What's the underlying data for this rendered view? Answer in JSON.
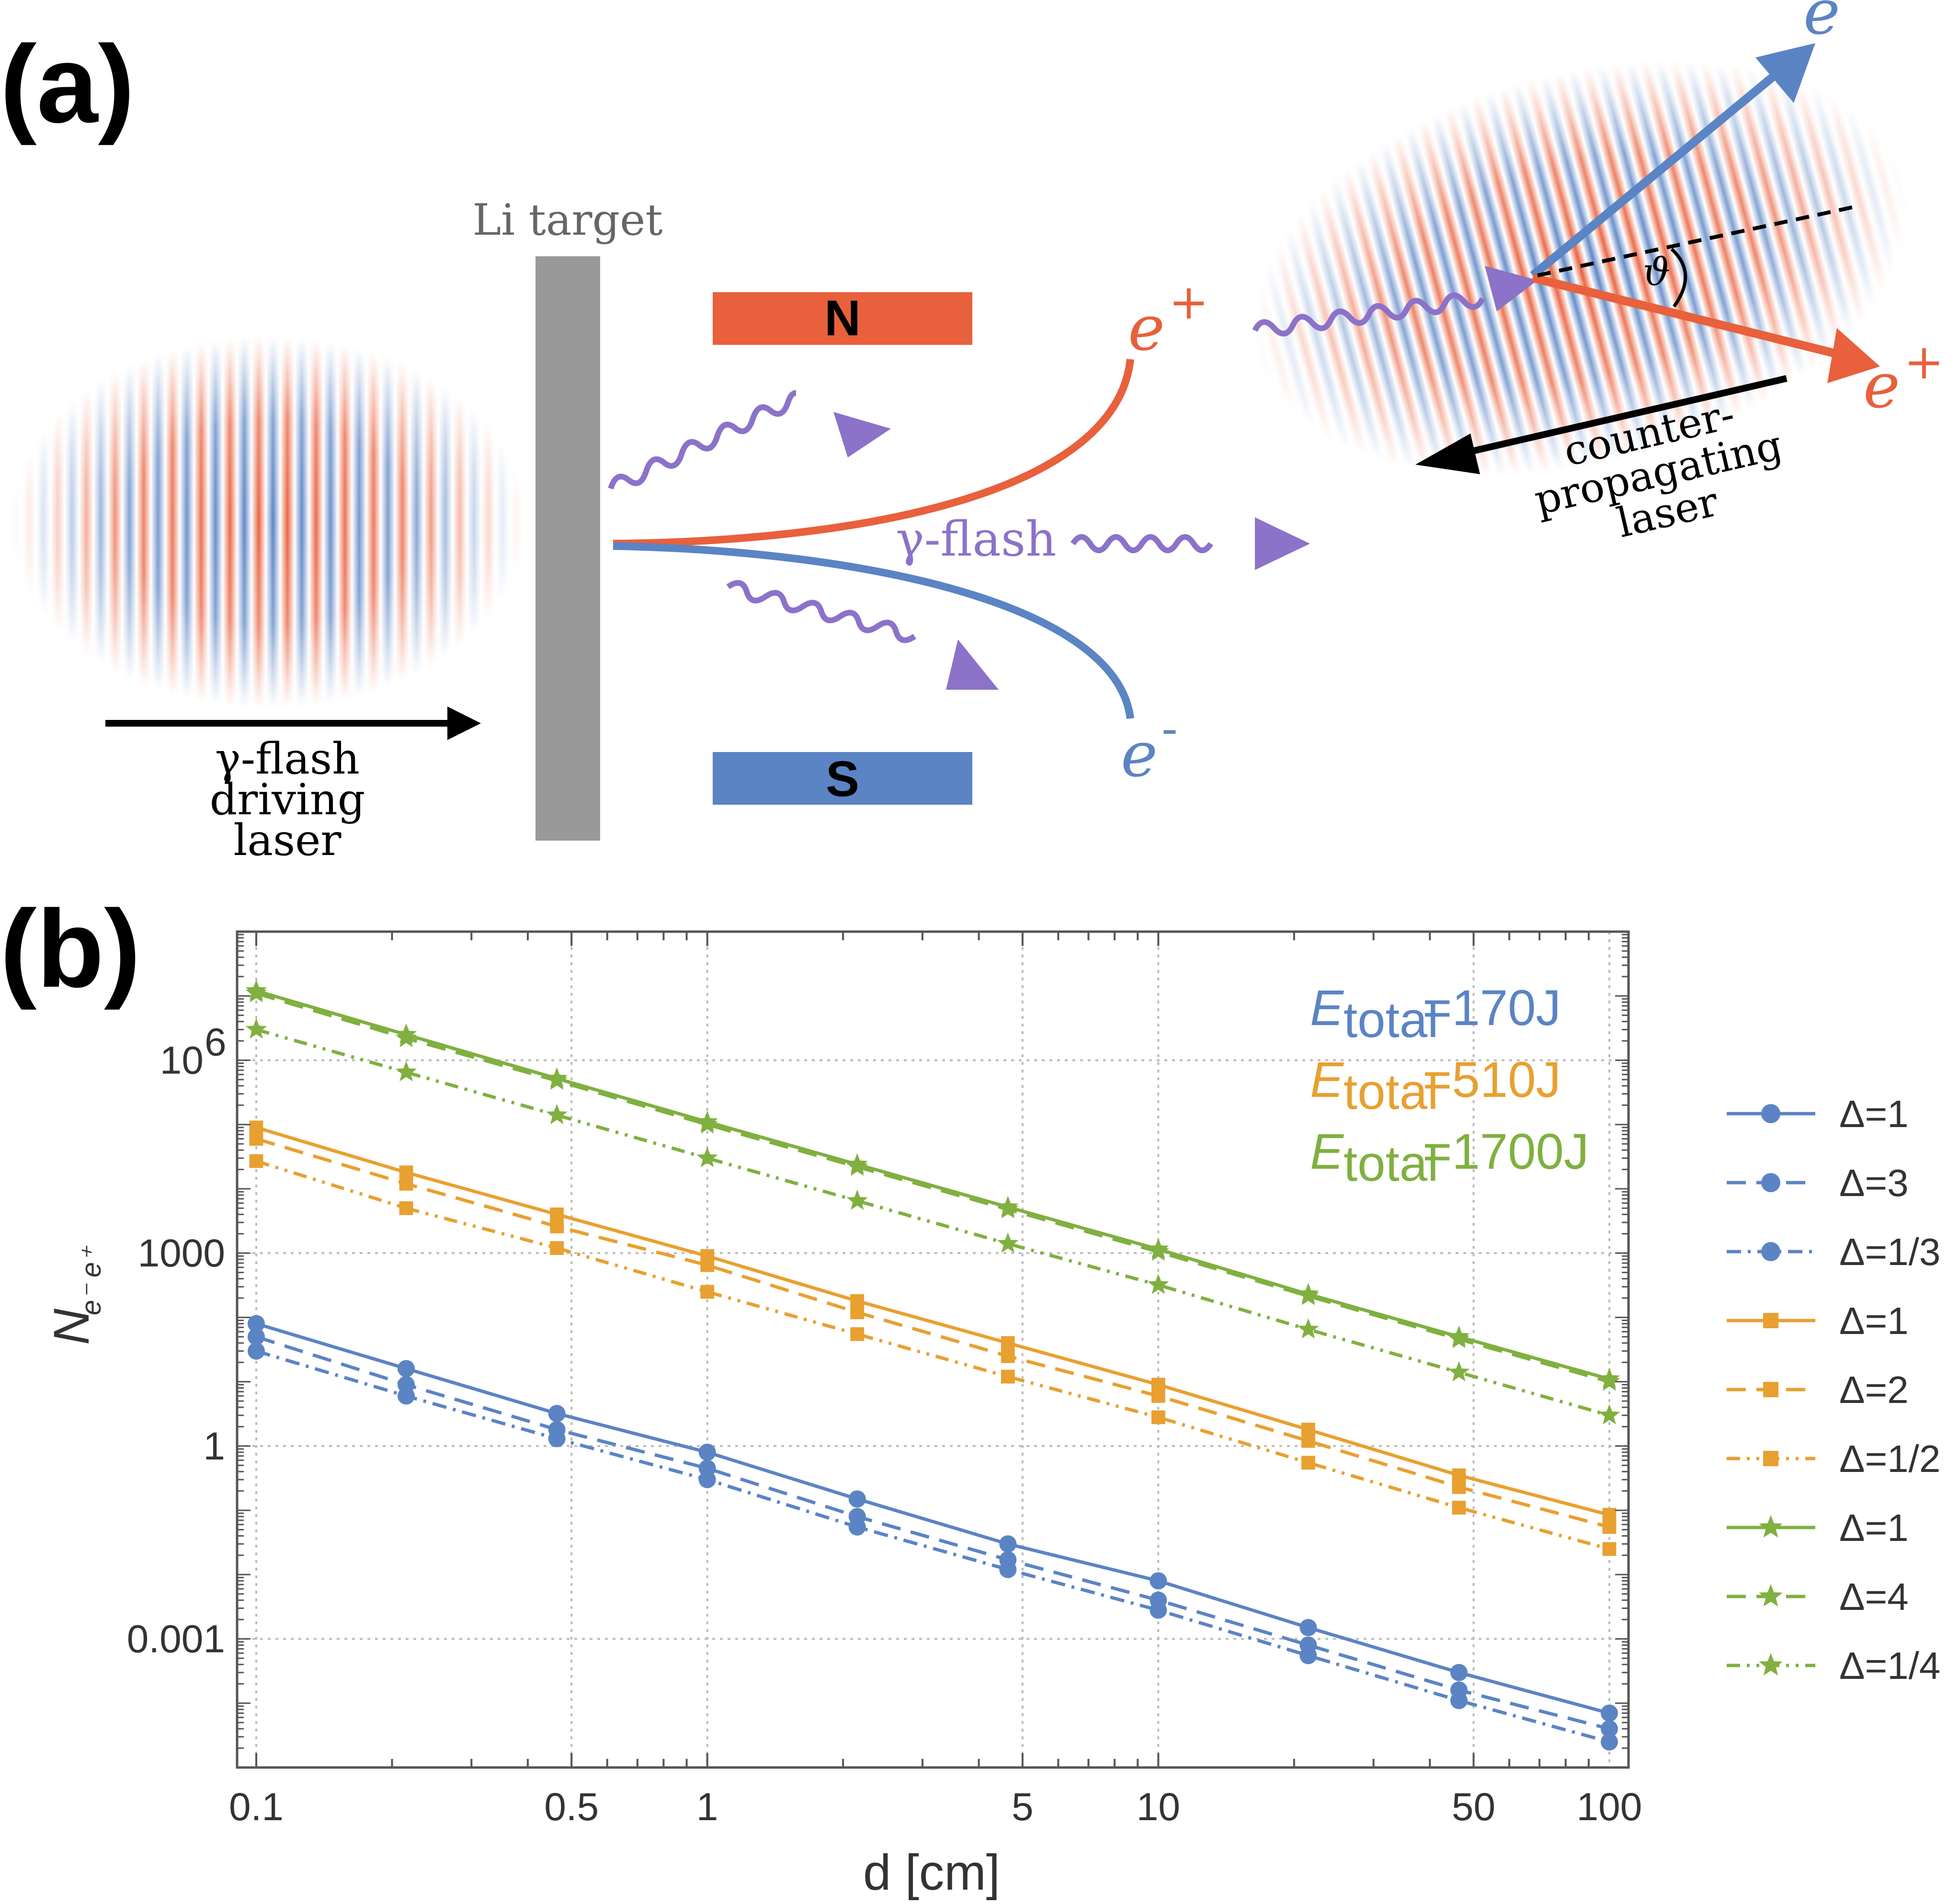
{
  "panel_a": {
    "label": "(a)",
    "target_label": "Li target",
    "magnet_north": "N",
    "magnet_south": "S",
    "gamma_flash_label": "γ-flash",
    "positron_label": "e",
    "positron_sup": "+",
    "electron_label": "e",
    "electron_sup": "-",
    "driving_laser_lines": [
      "γ-flash",
      "driving",
      "laser"
    ],
    "counter_laser_lines": [
      "counter-",
      "propagating",
      "laser"
    ],
    "angle_symbol": "ϑ",
    "colors": {
      "red": "#e8603c",
      "blue": "#5b84c4",
      "purple": "#8c72c8",
      "gray": "#999999"
    }
  },
  "panel_b": {
    "label": "(b)"
  },
  "chart_data": {
    "type": "line",
    "xscale": "log",
    "yscale": "log",
    "xlim": [
      0.1,
      100
    ],
    "ylim": [
      1e-05,
      100000000
    ],
    "xlabel": "d [cm]",
    "ylabel": "N",
    "ylabel_sub": "e⁻ e⁺",
    "x_ticks": [
      {
        "value": 0.1,
        "label": "0.1"
      },
      {
        "value": 0.5,
        "label": "0.5"
      },
      {
        "value": 1,
        "label": "1"
      },
      {
        "value": 5,
        "label": "5"
      },
      {
        "value": 10,
        "label": "10"
      },
      {
        "value": 50,
        "label": "50"
      },
      {
        "value": 100,
        "label": "100"
      }
    ],
    "y_ticks": [
      {
        "value": 0.001,
        "label": "0.001"
      },
      {
        "value": 1,
        "label": "1"
      },
      {
        "value": 1000,
        "label": "1000"
      },
      {
        "value": 1000000,
        "label": "10",
        "sup": "6"
      }
    ],
    "x": [
      0.1,
      0.215,
      0.464,
      1,
      2.15,
      4.64,
      10,
      21.5,
      46.4,
      100
    ],
    "annotations": [
      {
        "text_italic": "E",
        "sub": "total",
        "rest": "=170J",
        "color": "#5b84c4"
      },
      {
        "text_italic": "E",
        "sub": "total",
        "rest": "=510J",
        "color": "#e8a030"
      },
      {
        "text_italic": "E",
        "sub": "total",
        "rest": "=1700J",
        "color": "#80b040"
      }
    ],
    "series": [
      {
        "name": "Δ=1",
        "group": "170J",
        "color": "#5b84c4",
        "marker": "circle",
        "dash": "solid",
        "values": [
          80,
          16,
          3.2,
          0.8,
          0.15,
          0.03,
          0.008,
          0.0015,
          0.0003,
          7e-05
        ]
      },
      {
        "name": "Δ=3",
        "group": "170J",
        "color": "#5b84c4",
        "marker": "circle",
        "dash": "dashed",
        "values": [
          50,
          9,
          1.8,
          0.45,
          0.08,
          0.017,
          0.004,
          0.0008,
          0.00016,
          4e-05
        ]
      },
      {
        "name": "Δ=1/3",
        "group": "170J",
        "color": "#5b84c4",
        "marker": "circle",
        "dash": "dashdot",
        "values": [
          30,
          6,
          1.3,
          0.3,
          0.055,
          0.012,
          0.0028,
          0.00055,
          0.00011,
          2.5e-05
        ]
      },
      {
        "name": "Δ=1",
        "group": "510J",
        "color": "#e8a030",
        "marker": "square",
        "dash": "solid",
        "values": [
          90000,
          18000,
          4000,
          900,
          180,
          40,
          9,
          1.8,
          0.35,
          0.085
        ]
      },
      {
        "name": "Δ=2",
        "group": "510J",
        "color": "#e8a030",
        "marker": "square",
        "dash": "dashed",
        "values": [
          60000,
          12000,
          2600,
          650,
          120,
          25,
          6,
          1.2,
          0.23,
          0.055
        ]
      },
      {
        "name": "Δ=1/2",
        "group": "510J",
        "color": "#e8a030",
        "marker": "square",
        "dash": "dotdotdash",
        "values": [
          27000,
          5000,
          1200,
          250,
          55,
          12,
          2.8,
          0.55,
          0.11,
          0.025
        ]
      },
      {
        "name": "Δ=1",
        "group": "1700J",
        "color": "#80b040",
        "marker": "star",
        "dash": "solid",
        "values": [
          12000000,
          2500000,
          520000,
          110000,
          24000,
          5200,
          1150,
          230,
          50,
          11
        ]
      },
      {
        "name": "Δ=4",
        "group": "1700J",
        "color": "#80b040",
        "marker": "star",
        "dash": "dashed",
        "values": [
          11000000,
          2200000,
          480000,
          100000,
          22000,
          4800,
          1050,
          215,
          46,
          10
        ]
      },
      {
        "name": "Δ=1/4",
        "group": "1700J",
        "color": "#80b040",
        "marker": "star",
        "dash": "dotdotdash",
        "values": [
          3000000,
          650000,
          140000,
          30000,
          6500,
          1400,
          320,
          65,
          14,
          3
        ]
      }
    ]
  }
}
